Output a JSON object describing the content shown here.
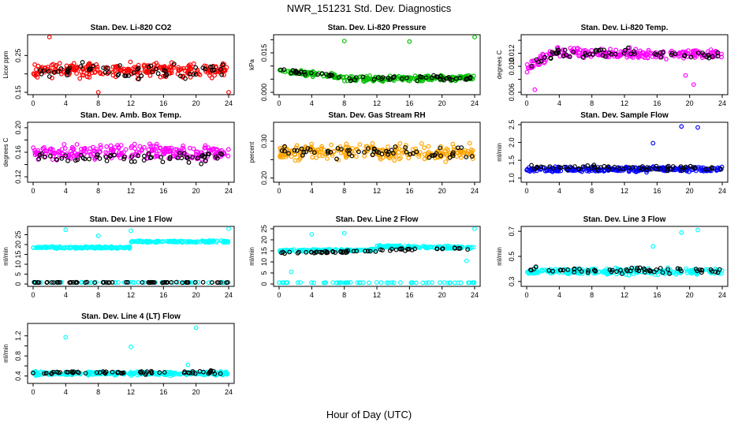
{
  "figure": {
    "title": "NWR_151231  Std. Dev. Diagnostics",
    "xlabel": "Hour of Day (UTC)"
  },
  "chart_data": [
    {
      "type": "scatter",
      "title": "Stan. Dev. Li-820 CO2",
      "ylabel": "Licor ppm",
      "xlim": [
        0,
        24
      ],
      "xticks": [
        0,
        4,
        8,
        12,
        16,
        20,
        24
      ],
      "ylim": [
        0.15,
        0.3
      ],
      "yticks": [
        0.15,
        0.2,
        0.25
      ],
      "ytick_labels": [
        "0.15",
        "",
        "0.25"
      ],
      "colors": {
        "main": "#ff0000",
        "secondary": "#000000"
      },
      "series": [
        {
          "level": 0.21,
          "spread": 0.028,
          "outliers": [
            [
              2.0,
              0.3
            ],
            [
              8.0,
              0.15
            ],
            [
              24.0,
              0.15
            ]
          ]
        },
        {
          "level": 0.21,
          "spread": 0.028
        }
      ]
    },
    {
      "type": "scatter",
      "title": "Stan. Dev. Li-820 Pressure",
      "ylabel": "kPa",
      "xlim": [
        0,
        24
      ],
      "xticks": [
        0,
        4,
        8,
        12,
        16,
        20,
        24
      ],
      "ylim": [
        0.0,
        0.021
      ],
      "yticks": [
        0.0,
        0.005,
        0.01,
        0.015,
        0.02
      ],
      "ytick_labels": [
        "0.000",
        "",
        "",
        "0.015",
        ""
      ],
      "colors": {
        "main": "#00c000",
        "secondary": "#000000"
      },
      "series": [
        {
          "segments": [
            [
              0,
              8,
              0.0082,
              0.0058
            ],
            [
              8,
              24,
              0.005,
              0.0055
            ]
          ],
          "spread": 0.0014,
          "outliers": [
            [
              8.0,
              0.0195
            ],
            [
              16.0,
              0.0193
            ],
            [
              24.0,
              0.021
            ]
          ]
        },
        {
          "segments": [
            [
              0,
              8,
              0.0082,
              0.0058
            ],
            [
              8,
              24,
              0.005,
              0.0055
            ]
          ],
          "spread": 0.0014
        }
      ]
    },
    {
      "type": "scatter",
      "title": "Stan. Dev. Li-820 Temp.",
      "ylabel": "degrees C",
      "xlim": [
        0,
        24
      ],
      "xticks": [
        0,
        4,
        8,
        12,
        16,
        20,
        24
      ],
      "ylim": [
        0.006,
        0.0145
      ],
      "yticks": [
        0.006,
        0.008,
        0.01,
        0.012,
        0.014
      ],
      "ytick_labels": [
        "0.006",
        "",
        "0.010",
        "0.012",
        ""
      ],
      "colors": {
        "main": "#ff00ff",
        "secondary": "#000000"
      },
      "series": [
        {
          "segments": [
            [
              0,
              4,
              0.0097,
              0.0125
            ],
            [
              4,
              24,
              0.012,
              0.0118
            ]
          ],
          "spread": 0.0011,
          "outliers": [
            [
              1.0,
              0.0064
            ],
            [
              19.5,
              0.0086
            ],
            [
              20.5,
              0.0072
            ]
          ]
        },
        {
          "segments": [
            [
              0,
              4,
              0.0097,
              0.0125
            ],
            [
              4,
              24,
              0.012,
              0.0118
            ]
          ],
          "spread": 0.0011
        }
      ]
    },
    {
      "type": "scatter",
      "title": "Stan. Dev. Amb. Box Temp.",
      "ylabel": "degrees C",
      "xlim": [
        0,
        24
      ],
      "xticks": [
        0,
        4,
        8,
        12,
        16,
        20,
        24
      ],
      "ylim": [
        0.115,
        0.205
      ],
      "yticks": [
        0.12,
        0.14,
        0.16,
        0.18,
        0.2
      ],
      "ytick_labels": [
        "0.12",
        "",
        "0.16",
        "",
        "0.20"
      ],
      "colors": {
        "main": "#ff00ff",
        "secondary": "#000000"
      },
      "series": [
        {
          "level": 0.16,
          "spread": 0.018
        },
        {
          "level": 0.152,
          "spread": 0.014
        }
      ]
    },
    {
      "type": "scatter",
      "title": "Stan. Dev. Gas Stream RH",
      "ylabel": "percent",
      "xlim": [
        0,
        24
      ],
      "xticks": [
        0,
        4,
        8,
        12,
        16,
        20,
        24
      ],
      "ylim": [
        0.195,
        0.345
      ],
      "yticks": [
        0.2,
        0.25,
        0.3
      ],
      "ytick_labels": [
        "0.20",
        "",
        "0.30"
      ],
      "colors": {
        "main": "#ffa500",
        "secondary": "#000000"
      },
      "series": [
        {
          "level": 0.27,
          "spread": 0.03
        },
        {
          "level": 0.27,
          "spread": 0.025
        }
      ]
    },
    {
      "type": "scatter",
      "title": "Stan. Dev. Sample Flow",
      "ylabel": "ml/min",
      "xlim": [
        0,
        24
      ],
      "xticks": [
        0,
        4,
        8,
        12,
        16,
        20,
        24
      ],
      "ylim": [
        0.95,
        2.5
      ],
      "yticks": [
        1.0,
        1.5,
        2.0,
        2.5
      ],
      "ytick_labels": [
        "1.0",
        "1.5",
        "2.0",
        "2.5"
      ],
      "colors": {
        "main": "#0000ff",
        "secondary": "#000000"
      },
      "series": [
        {
          "level": 1.25,
          "spread": 0.1,
          "outliers": [
            [
              15.5,
              1.98
            ],
            [
              19.0,
              2.45
            ],
            [
              21.0,
              2.42
            ]
          ]
        },
        {
          "level": 1.28,
          "spread": 0.1
        }
      ]
    },
    {
      "type": "scatter",
      "title": "Stan. Dev. Line 1 Flow",
      "ylabel": "ml/min",
      "xlim": [
        0,
        24
      ],
      "xticks": [
        0,
        4,
        8,
        12,
        16,
        20,
        24
      ],
      "ylim": [
        0,
        28
      ],
      "yticks": [
        0,
        5,
        10,
        15,
        20,
        25
      ],
      "ytick_labels": [
        "0",
        "5",
        "10",
        "15",
        "20",
        "25"
      ],
      "colors": {
        "main": "#00ffff",
        "secondary": "#000000"
      },
      "series": [
        {
          "segments": [
            [
              0,
              12,
              18.5,
              18.5
            ],
            [
              12,
              24,
              21.5,
              21.5
            ]
          ],
          "spread": 0.7,
          "outliers": [
            [
              4.0,
              27.5
            ],
            [
              8.0,
              24.5
            ],
            [
              12.0,
              27.0
            ],
            [
              24.0,
              28.0
            ]
          ]
        },
        {
          "level": 0.8,
          "spread": 0.2
        },
        {
          "level": 0.8,
          "spread": 0.2
        }
      ]
    },
    {
      "type": "scatter",
      "title": "Stan. Dev. Line 2 Flow",
      "ylabel": "ml/min",
      "xlim": [
        0,
        24
      ],
      "xticks": [
        0,
        4,
        8,
        12,
        16,
        20,
        24
      ],
      "ylim": [
        0,
        25
      ],
      "yticks": [
        0,
        5,
        10,
        15,
        20,
        25
      ],
      "ytick_labels": [
        "0",
        "5",
        "10",
        "15",
        "20",
        "25"
      ],
      "colors": {
        "main": "#00ffff",
        "secondary": "#000000"
      },
      "series": [
        {
          "segments": [
            [
              0,
              12,
              15.0,
              15.5
            ],
            [
              12,
              24,
              17.0,
              16.5
            ]
          ],
          "spread": 0.8,
          "outliers": [
            [
              1.5,
              5.5
            ],
            [
              4.0,
              22.5
            ],
            [
              8.0,
              23.0
            ],
            [
              23.0,
              10.5
            ],
            [
              24.0,
              25.0
            ]
          ]
        },
        {
          "level": 0.6,
          "spread": 0.15
        },
        {
          "segments": [
            [
              0,
              12,
              14.0,
              15.0
            ],
            [
              12,
              24,
              15.5,
              16.0
            ]
          ],
          "spread": 0.8
        }
      ]
    },
    {
      "type": "scatter",
      "title": "Stan. Dev. Line 3 Flow",
      "ylabel": "ml/min",
      "xlim": [
        0,
        24
      ],
      "xticks": [
        0,
        4,
        8,
        12,
        16,
        20,
        24
      ],
      "ylim": [
        0.28,
        0.72
      ],
      "yticks": [
        0.3,
        0.5,
        0.7
      ],
      "ytick_labels": [
        "0.3",
        "0.5",
        "0.7"
      ],
      "colors": {
        "main": "#00ffff",
        "secondary": "#000000"
      },
      "series": [
        {
          "level": 0.38,
          "spread": 0.035,
          "outliers": [
            [
              15.5,
              0.58
            ],
            [
              19.0,
              0.69
            ],
            [
              21.0,
              0.71
            ]
          ]
        },
        {
          "level": 0.39,
          "spread": 0.035
        }
      ]
    },
    {
      "type": "scatter",
      "title": "Stan. Dev. Line 4 (LT) Flow",
      "ylabel": "ml/min",
      "xlim": [
        0,
        24
      ],
      "xticks": [
        0,
        4,
        8,
        12,
        16,
        20,
        24
      ],
      "ylim": [
        0.3,
        1.4
      ],
      "yticks": [
        0.4,
        0.6,
        0.8,
        1.0,
        1.2
      ],
      "ytick_labels": [
        "0.4",
        "",
        "0.8",
        "",
        "1.2"
      ],
      "colors": {
        "main": "#00ffff",
        "secondary": "#000000"
      },
      "series": [
        {
          "level": 0.45,
          "spread": 0.05,
          "outliers": [
            [
              4.0,
              1.17
            ],
            [
              12.0,
              0.98
            ],
            [
              19.0,
              0.62
            ],
            [
              20.0,
              1.36
            ]
          ]
        },
        {
          "level": 0.47,
          "spread": 0.045
        }
      ]
    }
  ]
}
